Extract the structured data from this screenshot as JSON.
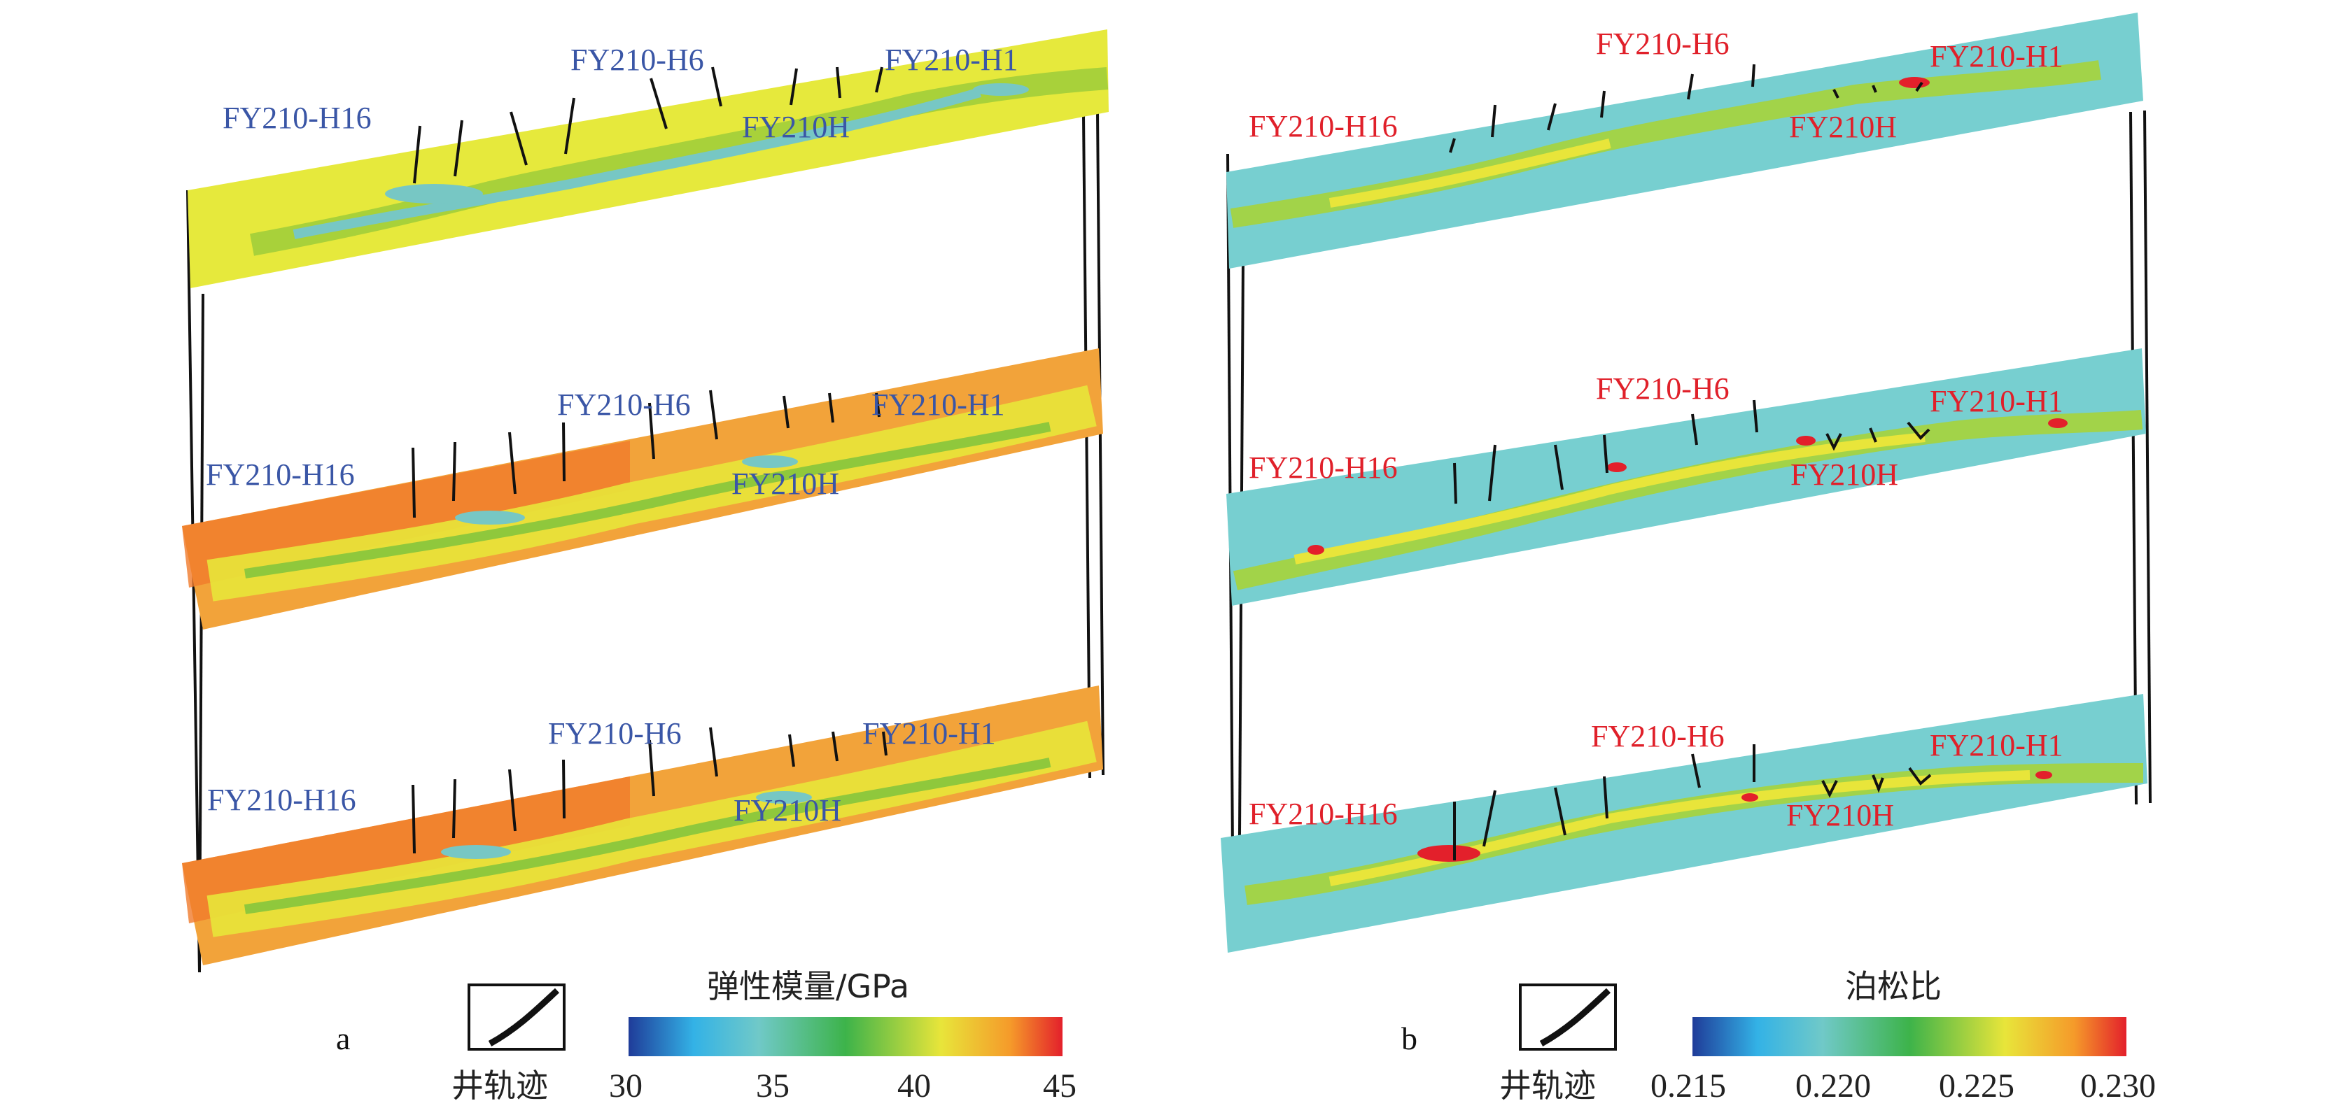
{
  "panels": [
    {
      "id": "a",
      "letter": "a",
      "wells": [
        "FY210-H16",
        "FY210-H6",
        "FY210H",
        "FY210-H1"
      ],
      "label_color": "#3a56a6",
      "colorbar": {
        "title": "弹性模量/GPa",
        "ticks": [
          "30",
          "35",
          "40",
          "45"
        ],
        "colors": [
          "#1f3c99",
          "#33b2e6",
          "#70c9c8",
          "#3db34a",
          "#e8e53a",
          "#f59a2a",
          "#e3202b"
        ]
      },
      "legend_label": "井轨迹",
      "icon": "well-trajectory-icon"
    },
    {
      "id": "b",
      "letter": "b",
      "wells": [
        "FY210-H16",
        "FY210-H6",
        "FY210H",
        "FY210-H1"
      ],
      "label_color": "#e0202a",
      "colorbar": {
        "title": "泊松比",
        "ticks": [
          "0.215",
          "0.220",
          "0.225",
          "0.230"
        ],
        "colors": [
          "#1f3c99",
          "#33b2e6",
          "#70c9c8",
          "#3db34a",
          "#e8e53a",
          "#f59a2a",
          "#e3202b"
        ]
      },
      "legend_label": "井轨迹",
      "icon": "well-trajectory-icon"
    }
  ]
}
